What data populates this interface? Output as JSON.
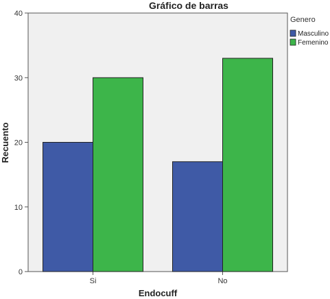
{
  "chart_data": {
    "type": "bar",
    "title": "Gráfico de barras",
    "xlabel": "Endocuff",
    "ylabel": "Recuento",
    "categories": [
      "Si",
      "No"
    ],
    "series": [
      {
        "name": "Masculino",
        "values": [
          20,
          17
        ],
        "color": "#3f5aa6"
      },
      {
        "name": "Femenino",
        "values": [
          30,
          33
        ],
        "color": "#3db54a"
      }
    ],
    "ylim": [
      0,
      40
    ],
    "yticks": [
      0,
      10,
      20,
      30,
      40
    ],
    "grid": false,
    "legend": {
      "title": "Genero",
      "position": "right"
    },
    "plot_background": "#f0f0f0"
  }
}
